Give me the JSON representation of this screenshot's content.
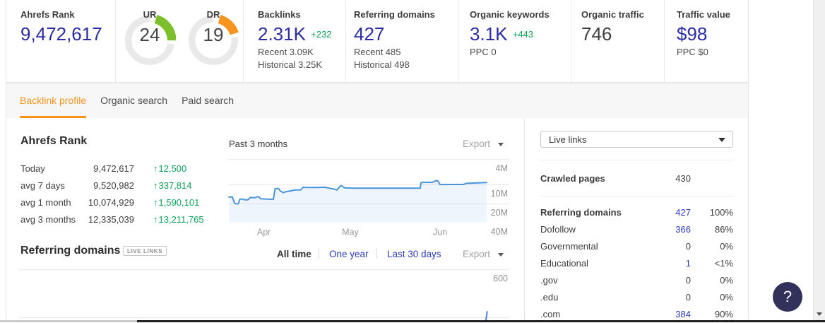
{
  "icons": {
    "up_arrow": "↑"
  },
  "colors": {
    "accent_orange": "#f7941e",
    "metric_indigo": "#28289c",
    "link_blue": "#2d3bbd",
    "delta_green": "#12a15c",
    "gauge_green": "#7cbf2b",
    "gauge_orange": "#f7941d",
    "chart_line_blue": "#4a94db",
    "help_navy": "#32315b"
  },
  "top_metrics": {
    "ahrefs_rank": {
      "label": "Ahrefs Rank",
      "value": "9,472,617"
    },
    "ur": {
      "label": "UR",
      "value": "24"
    },
    "dr": {
      "label": "DR",
      "value": "19"
    },
    "backlinks": {
      "label": "Backlinks",
      "value": "2.31K",
      "delta": "+232",
      "recent": "Recent 3.09K",
      "historical": "Historical 3.25K"
    },
    "referring_domains": {
      "label": "Referring domains",
      "value": "427",
      "recent": "Recent 485",
      "historical": "Historical 498"
    },
    "organic_keywords": {
      "label": "Organic keywords",
      "value": "3.1K",
      "delta": "+443",
      "ppc": "PPC 0"
    },
    "organic_traffic": {
      "label": "Organic traffic",
      "value": "746"
    },
    "traffic_value": {
      "label": "Traffic value",
      "value": "$98",
      "ppc": "PPC $0"
    }
  },
  "tabs": {
    "backlink_profile": "Backlink profile",
    "organic_search": "Organic search",
    "paid_search": "Paid search"
  },
  "rank_section": {
    "title": "Ahrefs Rank",
    "rows": [
      {
        "label": "Today",
        "value": "9,472,617",
        "delta": "12,500"
      },
      {
        "label": "avg 7 days",
        "value": "9,520,982",
        "delta": "337,814"
      },
      {
        "label": "avg 1 month",
        "value": "10,074,929",
        "delta": "1,590,101"
      },
      {
        "label": "avg 3 months",
        "value": "12,335,039",
        "delta": "13,211,765"
      }
    ],
    "chart_title": "Past 3 months",
    "export_label": "Export"
  },
  "referring_section": {
    "title": "Referring domains",
    "badge": "LIVE LINKS",
    "range_all": "All time",
    "range_year": "One year",
    "range_month": "Last 30 days",
    "export_label": "Export"
  },
  "chart_data": [
    {
      "type": "area",
      "title": "Past 3 months",
      "series_name": "Ahrefs Rank",
      "y_scale": "log-inverted",
      "y_unit": "millions",
      "ylim": [
        4,
        40
      ],
      "grid": true,
      "y_ticks": [
        {
          "label": "4M",
          "value": 4
        },
        {
          "label": "10M",
          "value": 10
        },
        {
          "label": "20M",
          "value": 20
        },
        {
          "label": "40M",
          "value": 40
        }
      ],
      "x_ticks": [
        {
          "label": "Apr",
          "f": 0.1359
        },
        {
          "label": "May",
          "f": 0.4712
        },
        {
          "label": "Jun",
          "f": 0.8192
        }
      ],
      "points": [
        {
          "f": 0.0,
          "rank_m": 15.57
        },
        {
          "f": 0.0137,
          "rank_m": 15.57
        },
        {
          "f": 0.0205,
          "rank_m": 18.87
        },
        {
          "f": 0.0247,
          "rank_m": 19.86
        },
        {
          "f": 0.037,
          "rank_m": 19.97
        },
        {
          "f": 0.0411,
          "rank_m": 17.34
        },
        {
          "f": 0.0447,
          "rank_m": 16.77
        },
        {
          "f": 0.0575,
          "rank_m": 16.86
        },
        {
          "f": 0.0603,
          "rank_m": 17.25
        },
        {
          "f": 0.074,
          "rank_m": 17.25
        },
        {
          "f": 0.0822,
          "rank_m": 15.93
        },
        {
          "f": 0.1041,
          "rank_m": 15.89
        },
        {
          "f": 0.1096,
          "rank_m": 15.57
        },
        {
          "f": 0.1151,
          "rank_m": 15.41
        },
        {
          "f": 0.1233,
          "rank_m": 16.64
        },
        {
          "f": 0.1699,
          "rank_m": 16.94
        },
        {
          "f": 0.1726,
          "rank_m": 16.94
        },
        {
          "f": 0.1795,
          "rank_m": 11.53
        },
        {
          "f": 0.1932,
          "rank_m": 11.47
        },
        {
          "f": 0.2,
          "rank_m": 12.55
        },
        {
          "f": 0.211,
          "rank_m": 13.28
        },
        {
          "f": 0.2192,
          "rank_m": 12.91
        },
        {
          "f": 0.2411,
          "rank_m": 12.46
        },
        {
          "f": 0.2548,
          "rank_m": 12.11
        },
        {
          "f": 0.2795,
          "rank_m": 12.02
        },
        {
          "f": 0.2877,
          "rank_m": 10.96
        },
        {
          "f": 0.3068,
          "rank_m": 11.04
        },
        {
          "f": 0.3452,
          "rank_m": 11.04
        },
        {
          "f": 0.3726,
          "rank_m": 10.93
        },
        {
          "f": 0.3836,
          "rank_m": 11.18
        },
        {
          "f": 0.4137,
          "rank_m": 11.83
        },
        {
          "f": 0.4192,
          "rank_m": 12.08
        },
        {
          "f": 0.4329,
          "rank_m": 10.41
        },
        {
          "f": 0.4384,
          "rank_m": 10.41
        },
        {
          "f": 0.4493,
          "rank_m": 11.18
        },
        {
          "f": 0.4822,
          "rank_m": 11.3
        },
        {
          "f": 0.5644,
          "rank_m": 11.33
        },
        {
          "f": 0.6466,
          "rank_m": 11.3
        },
        {
          "f": 0.7014,
          "rank_m": 11.3
        },
        {
          "f": 0.7425,
          "rank_m": 11.3
        },
        {
          "f": 0.7452,
          "rank_m": 9.28
        },
        {
          "f": 0.7534,
          "rank_m": 9.16
        },
        {
          "f": 0.789,
          "rank_m": 9.16
        },
        {
          "f": 0.8027,
          "rank_m": 8.61
        },
        {
          "f": 0.811,
          "rank_m": 8.65
        },
        {
          "f": 0.8192,
          "rank_m": 9.91
        },
        {
          "f": 0.8658,
          "rank_m": 9.89
        },
        {
          "f": 0.9096,
          "rank_m": 9.89
        },
        {
          "f": 0.9205,
          "rank_m": 9.49
        },
        {
          "f": 0.9479,
          "rank_m": 9.39
        },
        {
          "f": 0.9753,
          "rank_m": 9.3
        },
        {
          "f": 1.0,
          "rank_m": 9.23
        }
      ]
    },
    {
      "type": "line",
      "title": "Referring domains",
      "series_name": "Referring domains",
      "y_scale": "linear",
      "grid": true,
      "y_ticks": [
        {
          "label": "600",
          "value": 600
        },
        {
          "label": "",
          "value": 300
        }
      ],
      "points": [
        {
          "f": 0.9918,
          "value": 271.7
        },
        {
          "f": 0.9922,
          "value": 280.6
        },
        {
          "f": 0.9952,
          "value": 341.1
        }
      ]
    }
  ],
  "side_panel": {
    "filter_value": "Live links",
    "crawled_pages": {
      "label": "Crawled pages",
      "value": "430"
    },
    "rows": [
      {
        "label": "Referring domains",
        "value": "427",
        "pct": "100%"
      },
      {
        "label": "Dofollow",
        "value": "366",
        "pct": "86%"
      },
      {
        "label": "Governmental",
        "value": "0",
        "pct": "0%"
      },
      {
        "label": "Educational",
        "value": "1",
        "pct": "<1%"
      },
      {
        "label": ".gov",
        "value": "0",
        "pct": "0%"
      },
      {
        "label": ".edu",
        "value": "0",
        "pct": "0%"
      },
      {
        "label": ".com",
        "value": "384",
        "pct": "90%"
      }
    ]
  },
  "help_button_label": "?"
}
